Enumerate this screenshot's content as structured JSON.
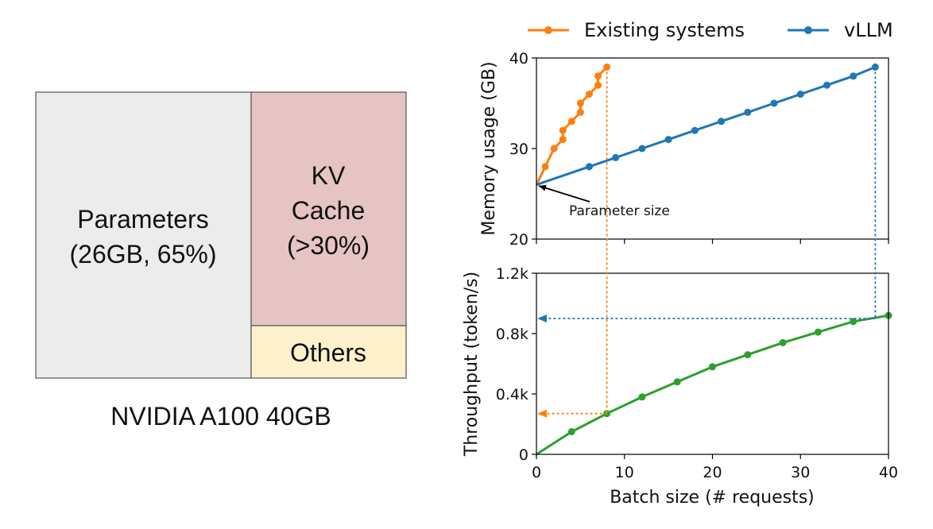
{
  "left_panel": {
    "title": "NVIDIA A100 40GB",
    "blocks": [
      {
        "line1": "Parameters",
        "line2": "(26GB, 65%)",
        "line3": "",
        "color": "#ececec"
      },
      {
        "line1": "KV",
        "line2": "Cache",
        "line3": "(>30%)",
        "color": "#e6c4c4"
      },
      {
        "line1": "Others",
        "line2": "",
        "line3": "",
        "color": "#fcf1cb"
      }
    ]
  },
  "legend": [
    {
      "label": "Existing systems",
      "color": "#ff7f0e"
    },
    {
      "label": "vLLM",
      "color": "#1f77b4"
    }
  ],
  "chart_data": [
    {
      "type": "line",
      "xlabel": "",
      "ylabel": "Memory usage (GB)",
      "xlim": [
        0,
        40
      ],
      "ylim": [
        20,
        40
      ],
      "yticks": [
        20,
        30,
        40
      ],
      "ytick_labels": [
        "20",
        "30",
        "40"
      ],
      "annotation": {
        "text": "Parameter size",
        "x": 0,
        "y": 26
      },
      "series": [
        {
          "name": "Existing systems",
          "color": "#ff7f0e",
          "x": [
            0,
            1,
            2,
            3,
            3,
            4,
            5,
            5,
            6,
            7,
            7,
            8
          ],
          "y": [
            26,
            28,
            30,
            31,
            32,
            33,
            34,
            35,
            36,
            37,
            38,
            39
          ]
        },
        {
          "name": "vLLM",
          "color": "#1f77b4",
          "x": [
            0,
            6,
            9,
            12,
            15,
            18,
            21,
            24,
            27,
            30,
            33,
            36,
            38.5
          ],
          "y": [
            26,
            28,
            29,
            30,
            31,
            32,
            33,
            34,
            35,
            36,
            37,
            38,
            39
          ]
        }
      ],
      "drop_lines": [
        {
          "x": 8,
          "color": "#ff7f0e"
        },
        {
          "x": 38.5,
          "color": "#1f77b4"
        }
      ]
    },
    {
      "type": "line",
      "xlabel": "Batch size (# requests)",
      "ylabel": "Throughput (token/s)",
      "xlim": [
        0,
        40
      ],
      "ylim": [
        0,
        1200
      ],
      "xticks": [
        0,
        10,
        20,
        30,
        40
      ],
      "xtick_labels": [
        "0",
        "10",
        "20",
        "30",
        "40"
      ],
      "yticks": [
        0,
        400,
        800,
        1200
      ],
      "ytick_labels": [
        "0",
        "0.4k",
        "0.8k",
        "1.2k"
      ],
      "series": [
        {
          "name": "",
          "color": "#2ca02c",
          "x": [
            0,
            4,
            8,
            12,
            16,
            20,
            24,
            28,
            32,
            36,
            40
          ],
          "y": [
            0,
            150,
            270,
            380,
            480,
            580,
            660,
            740,
            810,
            880,
            920
          ]
        }
      ],
      "reference_arrows": [
        {
          "from_x": 8,
          "y": 270,
          "color": "#ff7f0e"
        },
        {
          "from_x": 38.5,
          "y": 900,
          "color": "#1f77b4"
        }
      ]
    }
  ]
}
